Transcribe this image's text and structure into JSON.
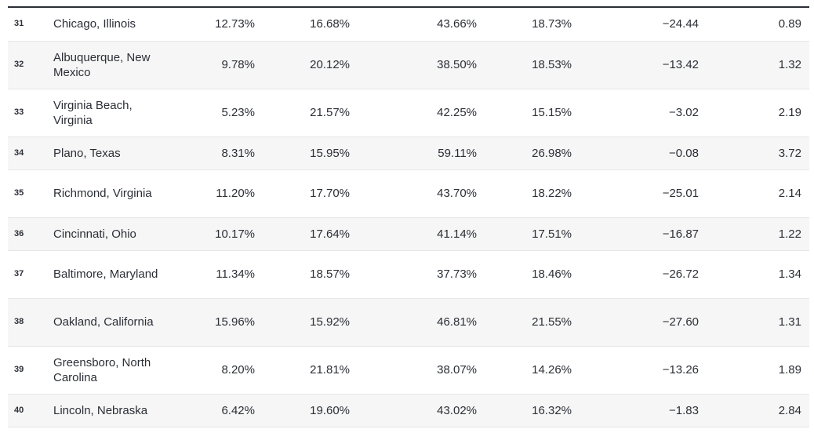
{
  "rows": [
    {
      "rank": "31",
      "city": "Chicago, Illinois",
      "c1": "12.73%",
      "c2": "16.68%",
      "c3": "43.66%",
      "c4": "18.73%",
      "c5": "−24.44",
      "c6": "0.89"
    },
    {
      "rank": "32",
      "city": "Albuquerque, New Mexico",
      "c1": "9.78%",
      "c2": "20.12%",
      "c3": "38.50%",
      "c4": "18.53%",
      "c5": "−13.42",
      "c6": "1.32"
    },
    {
      "rank": "33",
      "city": "Virginia Beach, Virginia",
      "c1": "5.23%",
      "c2": "21.57%",
      "c3": "42.25%",
      "c4": "15.15%",
      "c5": "−3.02",
      "c6": "2.19"
    },
    {
      "rank": "34",
      "city": "Plano, Texas",
      "c1": "8.31%",
      "c2": "15.95%",
      "c3": "59.11%",
      "c4": "26.98%",
      "c5": "−0.08",
      "c6": "3.72"
    },
    {
      "rank": "35",
      "city": "Richmond, Virginia",
      "c1": "11.20%",
      "c2": "17.70%",
      "c3": "43.70%",
      "c4": "18.22%",
      "c5": "−25.01",
      "c6": "2.14"
    },
    {
      "rank": "36",
      "city": "Cincinnati, Ohio",
      "c1": "10.17%",
      "c2": "17.64%",
      "c3": "41.14%",
      "c4": "17.51%",
      "c5": "−16.87",
      "c6": "1.22"
    },
    {
      "rank": "37",
      "city": "Baltimore, Maryland",
      "c1": "11.34%",
      "c2": "18.57%",
      "c3": "37.73%",
      "c4": "18.46%",
      "c5": "−26.72",
      "c6": "1.34"
    },
    {
      "rank": "38",
      "city": "Oakland, California",
      "c1": "15.96%",
      "c2": "15.92%",
      "c3": "46.81%",
      "c4": "21.55%",
      "c5": "−27.60",
      "c6": "1.31"
    },
    {
      "rank": "39",
      "city": "Greensboro, North Carolina",
      "c1": "8.20%",
      "c2": "21.81%",
      "c3": "38.07%",
      "c4": "14.26%",
      "c5": "−13.26",
      "c6": "1.89"
    },
    {
      "rank": "40",
      "city": "Lincoln, Nebraska",
      "c1": "6.42%",
      "c2": "19.60%",
      "c3": "43.02%",
      "c4": "16.32%",
      "c5": "−1.83",
      "c6": "2.84"
    }
  ]
}
